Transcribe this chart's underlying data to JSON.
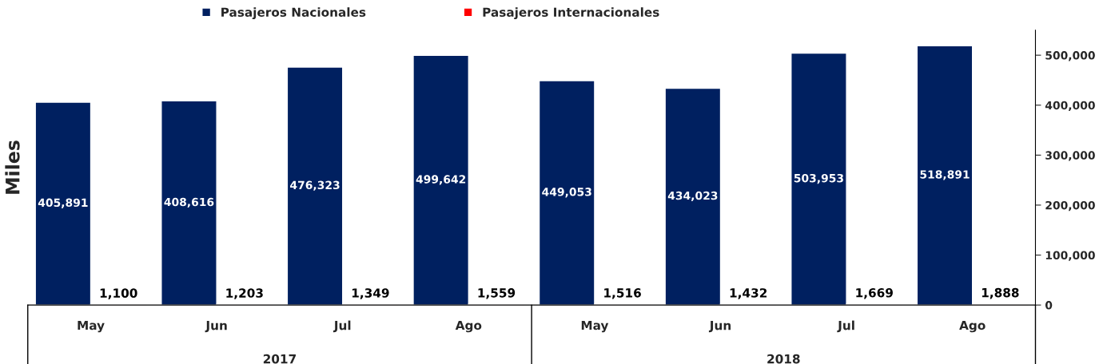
{
  "chart_data": {
    "type": "bar",
    "ylabel": "Miles",
    "categories": [
      "May",
      "Jun",
      "Jul",
      "Ago",
      "May",
      "Jun",
      "Jul",
      "Ago"
    ],
    "series": [
      {
        "name": "Pasajeros Nacionales",
        "color": "#002060",
        "values": [
          405891,
          408616,
          476323,
          499642,
          449053,
          434023,
          503953,
          518891
        ],
        "value_labels": [
          "405,891",
          "408,616",
          "476,323",
          "499,642",
          "449,053",
          "434,023",
          "503,953",
          "518,891"
        ]
      },
      {
        "name": "Pasajeros Internacionales",
        "color": "#ff0000",
        "values": [
          1100,
          1203,
          1349,
          1559,
          1516,
          1432,
          1669,
          1888
        ],
        "value_labels": [
          "1,100",
          "1,203",
          "1,349",
          "1,559",
          "1,516",
          "1,432",
          "1,669",
          "1,888"
        ]
      }
    ],
    "annotations": [
      "2017",
      "2018"
    ],
    "ylim": [
      0,
      550000
    ],
    "yticks": [
      {
        "value": 0,
        "label": "0"
      },
      {
        "value": 100000,
        "label": "100,000"
      },
      {
        "value": 200000,
        "label": "200,000"
      },
      {
        "value": 300000,
        "label": "300,000"
      },
      {
        "value": 400000,
        "label": "400,000"
      },
      {
        "value": 500000,
        "label": "500,000"
      }
    ],
    "legend": "top",
    "grid": false
  }
}
